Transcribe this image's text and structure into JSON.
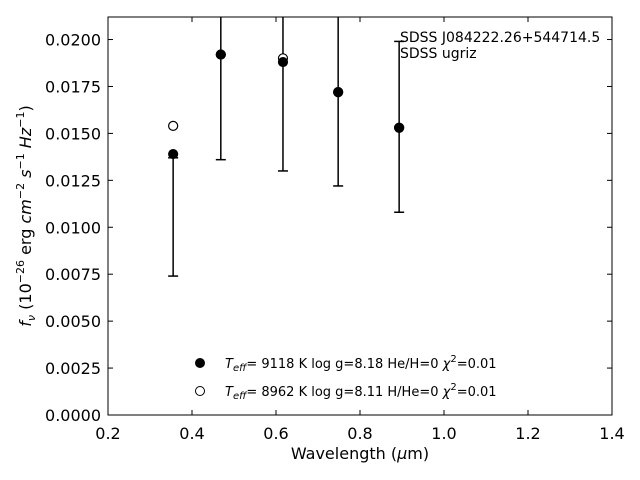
{
  "chart_data": {
    "type": "scatter",
    "title": "",
    "xlabel": "Wavelength (μm)",
    "ylabel": "fν (10⁻²⁶ erg cm⁻² s⁻¹ Hz⁻¹)",
    "xlim": [
      0.2,
      1.4
    ],
    "ylim": [
      0.0,
      0.0212
    ],
    "x_ticks": [
      "0.2",
      "0.4",
      "0.6",
      "0.8",
      "1.0",
      "1.2",
      "1.4"
    ],
    "y_ticks": [
      "0.0000",
      "0.0025",
      "0.0050",
      "0.0075",
      "0.0100",
      "0.0125",
      "0.0150",
      "0.0175",
      "0.0200"
    ],
    "annotation": [
      "SDSS J084222.26+544714.5",
      "SDSS ugriz"
    ],
    "observed": {
      "x": [
        0.3551,
        0.4686,
        0.6166,
        0.748,
        0.8932
      ],
      "y": [
        0.0139,
        0.0193,
        0.0189,
        0.0172,
        0.0154
      ],
      "y_low": [
        0.0074,
        0.0136,
        0.013,
        0.0122,
        0.0108
      ],
      "y_high": [
        0.0137,
        0.025,
        0.025,
        0.025,
        0.0199
      ]
    },
    "series": [
      {
        "name": "Teff=  9118 K  log g=8.18  He/H=0  χ²=0.01",
        "marker": "filled-circle",
        "x": [
          0.3551,
          0.4686,
          0.6166,
          0.748,
          0.8932
        ],
        "y": [
          0.0139,
          0.0192,
          0.0188,
          0.0172,
          0.0153
        ]
      },
      {
        "name": "Teff=  8962 K  log g=8.11  H/He=0  χ²=0.01",
        "marker": "open-circle",
        "x": [
          0.3551,
          0.4686,
          0.6166,
          0.748,
          0.8932
        ],
        "y": [
          0.0154,
          0.0192,
          0.019,
          0.0172,
          0.0153
        ]
      }
    ],
    "legend_position": "bottom-center",
    "grid": false
  }
}
